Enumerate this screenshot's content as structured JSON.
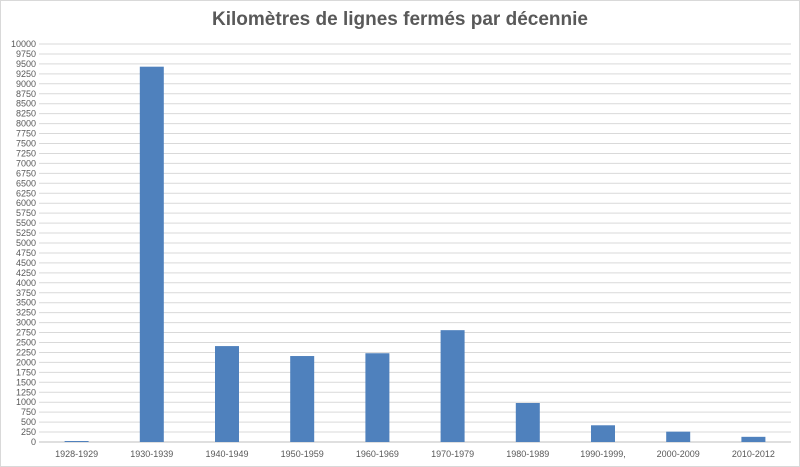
{
  "chart_data": {
    "type": "bar",
    "title": "Kilomètres de lignes fermés par décennie",
    "xlabel": "",
    "ylabel": "",
    "categories": [
      "1928-1929",
      "1930-1939",
      "1940-1949",
      "1950-1959",
      "1960-1969",
      "1970-1979",
      "1980-1989",
      "1990-1999,",
      "2000-2009",
      "2010-2012"
    ],
    "values": [
      25,
      9430,
      2410,
      2160,
      2230,
      2810,
      980,
      420,
      260,
      130
    ],
    "ylim": [
      0,
      10000
    ],
    "ytick_step": 250,
    "bar_color": "#4f81bd",
    "gridlines": true,
    "legend": "none"
  }
}
